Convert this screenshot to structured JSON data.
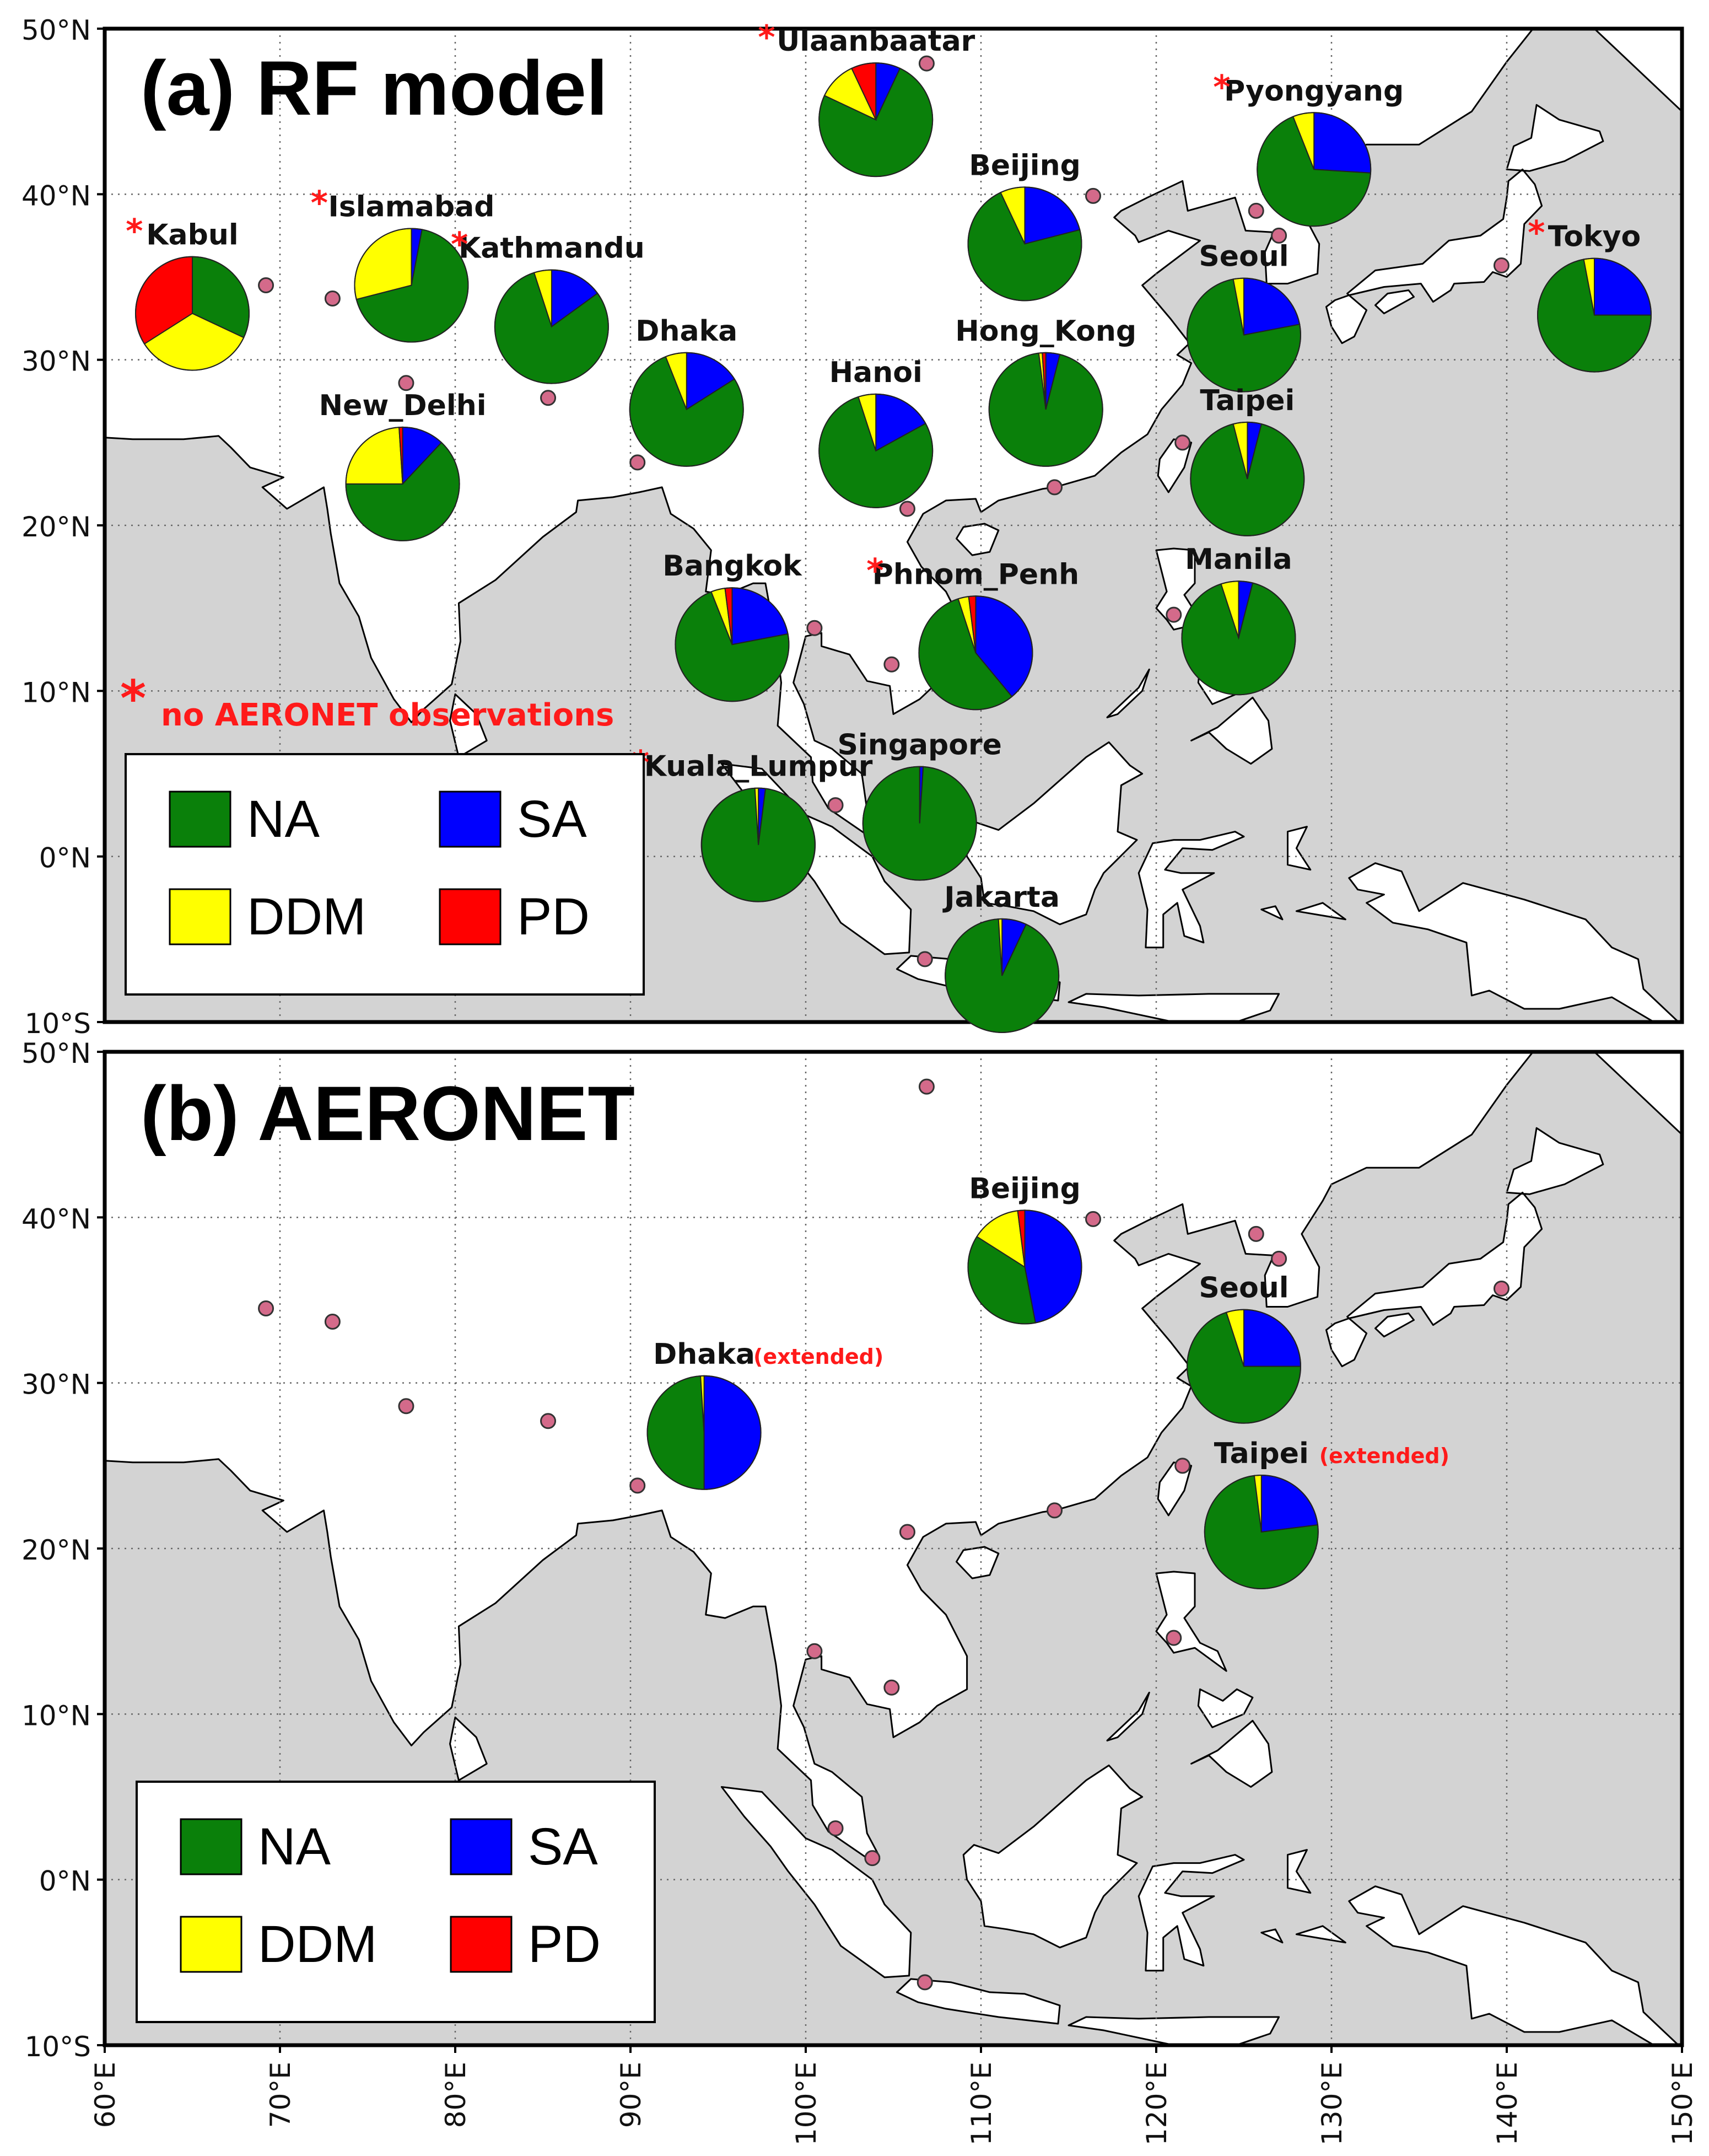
{
  "colors": {
    "NA": "#0a800a",
    "SA": "#0000ff",
    "DDM": "#ffff00",
    "PD": "#ff0000",
    "sea": "#d3d3d3",
    "land": "#ffffff",
    "site_marker": "#d46a8a",
    "note_red": "#ff1a1a"
  },
  "map": {
    "lon_range": [
      60,
      150
    ],
    "lat_range": [
      -10,
      50
    ],
    "lon_ticks": [
      "60°E",
      "70°E",
      "80°E",
      "90°E",
      "100°E",
      "110°E",
      "120°E",
      "130°E",
      "140°E",
      "150°E"
    ],
    "lat_ticks": [
      "50°N",
      "40°N",
      "30°N",
      "20°N",
      "10°N",
      "0°N",
      "10°S"
    ],
    "grid": "dotted",
    "aeronet_sites": [
      [
        69.2,
        34.5
      ],
      [
        73.0,
        33.7
      ],
      [
        77.2,
        28.6
      ],
      [
        85.3,
        27.7
      ],
      [
        90.4,
        23.8
      ],
      [
        100.5,
        13.8
      ],
      [
        104.9,
        11.6
      ],
      [
        105.8,
        21.0
      ],
      [
        101.7,
        3.1
      ],
      [
        103.8,
        1.3
      ],
      [
        106.8,
        -6.2
      ],
      [
        106.9,
        47.9
      ],
      [
        116.4,
        39.9
      ],
      [
        125.7,
        39.0
      ],
      [
        127.0,
        37.5
      ],
      [
        121.5,
        25.0
      ],
      [
        114.2,
        22.3
      ],
      [
        121.0,
        14.6
      ],
      [
        139.7,
        35.7
      ]
    ]
  },
  "panel_a": {
    "title": "(a) RF model",
    "note_star": "*",
    "note_text": "no AERONET observations",
    "legend": [
      {
        "key": "NA",
        "label": "NA"
      },
      {
        "key": "SA",
        "label": "SA"
      },
      {
        "key": "DDM",
        "label": "DDM"
      },
      {
        "key": "PD",
        "label": "PD"
      }
    ],
    "pies": [
      {
        "name": "Ulaanbaatar",
        "star": true,
        "lon": 104.0,
        "lat": 44.5,
        "NA": 0.75,
        "SA": 0.07,
        "DDM": 0.11,
        "PD": 0.07
      },
      {
        "name": "Pyongyang",
        "star": true,
        "lon": 129.0,
        "lat": 41.5,
        "NA": 0.68,
        "SA": 0.26,
        "DDM": 0.06,
        "PD": 0.0
      },
      {
        "name": "Beijing",
        "star": false,
        "lon": 112.5,
        "lat": 37.0,
        "NA": 0.72,
        "SA": 0.21,
        "DDM": 0.07,
        "PD": 0.0
      },
      {
        "name": "Islamabad",
        "star": true,
        "lon": 77.5,
        "lat": 34.5,
        "NA": 0.68,
        "SA": 0.03,
        "DDM": 0.29,
        "PD": 0.0
      },
      {
        "name": "Kabul",
        "star": true,
        "lon": 65.0,
        "lat": 32.8,
        "NA": 0.32,
        "SA": 0.0,
        "DDM": 0.34,
        "PD": 0.34
      },
      {
        "name": "Kathmandu",
        "star": true,
        "lon": 85.5,
        "lat": 32.0,
        "NA": 0.8,
        "SA": 0.15,
        "DDM": 0.05,
        "PD": 0.0
      },
      {
        "name": "Tokyo",
        "star": true,
        "lon": 145.0,
        "lat": 32.7,
        "NA": 0.72,
        "SA": 0.25,
        "DDM": 0.03,
        "PD": 0.0
      },
      {
        "name": "Seoul",
        "star": false,
        "lon": 125.0,
        "lat": 31.5,
        "NA": 0.75,
        "SA": 0.22,
        "DDM": 0.03,
        "PD": 0.0
      },
      {
        "name": "Dhaka",
        "star": false,
        "lon": 93.2,
        "lat": 27.0,
        "NA": 0.78,
        "SA": 0.16,
        "DDM": 0.06,
        "PD": 0.0
      },
      {
        "name": "Hong_Kong",
        "star": false,
        "lon": 113.7,
        "lat": 27.0,
        "NA": 0.94,
        "SA": 0.04,
        "DDM": 0.01,
        "PD": 0.01
      },
      {
        "name": "Hanoi",
        "star": false,
        "lon": 104.0,
        "lat": 24.5,
        "NA": 0.78,
        "SA": 0.17,
        "DDM": 0.05,
        "PD": 0.0
      },
      {
        "name": "New_Delhi",
        "star": false,
        "lon": 77.0,
        "lat": 22.5,
        "NA": 0.63,
        "SA": 0.12,
        "DDM": 0.24,
        "PD": 0.01
      },
      {
        "name": "Taipei",
        "star": false,
        "lon": 125.2,
        "lat": 22.8,
        "NA": 0.92,
        "SA": 0.04,
        "DDM": 0.04,
        "PD": 0.0
      },
      {
        "name": "Bangkok",
        "star": false,
        "lon": 95.8,
        "lat": 12.8,
        "NA": 0.72,
        "SA": 0.22,
        "DDM": 0.04,
        "PD": 0.02
      },
      {
        "name": "Phnom_Penh",
        "star": true,
        "lon": 109.7,
        "lat": 12.3,
        "NA": 0.56,
        "SA": 0.39,
        "DDM": 0.03,
        "PD": 0.02
      },
      {
        "name": "Manila",
        "star": false,
        "lon": 124.7,
        "lat": 13.2,
        "NA": 0.91,
        "SA": 0.04,
        "DDM": 0.05,
        "PD": 0.0
      },
      {
        "name": "Singapore",
        "star": false,
        "lon": 106.5,
        "lat": 2.0,
        "NA": 0.99,
        "SA": 0.01,
        "DDM": 0.0,
        "PD": 0.0
      },
      {
        "name": "Kuala_Lumpur",
        "star": true,
        "lon": 97.3,
        "lat": 0.7,
        "NA": 0.97,
        "SA": 0.02,
        "DDM": 0.01,
        "PD": 0.0
      },
      {
        "name": "Jakarta",
        "star": false,
        "lon": 111.2,
        "lat": -7.2,
        "NA": 0.92,
        "SA": 0.07,
        "DDM": 0.01,
        "PD": 0.0
      }
    ]
  },
  "panel_b": {
    "title": "(b) AERONET",
    "extended": "(extended)",
    "legend": [
      {
        "key": "NA",
        "label": "NA"
      },
      {
        "key": "SA",
        "label": "SA"
      },
      {
        "key": "DDM",
        "label": "DDM"
      },
      {
        "key": "PD",
        "label": "PD"
      }
    ],
    "pies": [
      {
        "name": "Beijing",
        "extended": false,
        "lon": 112.5,
        "lat": 37.0,
        "NA": 0.37,
        "SA": 0.47,
        "DDM": 0.14,
        "PD": 0.02
      },
      {
        "name": "Seoul",
        "extended": false,
        "lon": 125.0,
        "lat": 31.0,
        "NA": 0.7,
        "SA": 0.25,
        "DDM": 0.05,
        "PD": 0.0
      },
      {
        "name": "Dhaka",
        "extended": true,
        "lon": 94.2,
        "lat": 27.0,
        "NA": 0.49,
        "SA": 0.5,
        "DDM": 0.01,
        "PD": 0.0
      },
      {
        "name": "Taipei",
        "extended": true,
        "lon": 126.0,
        "lat": 21.0,
        "NA": 0.75,
        "SA": 0.23,
        "DDM": 0.02,
        "PD": 0.0
      }
    ]
  }
}
